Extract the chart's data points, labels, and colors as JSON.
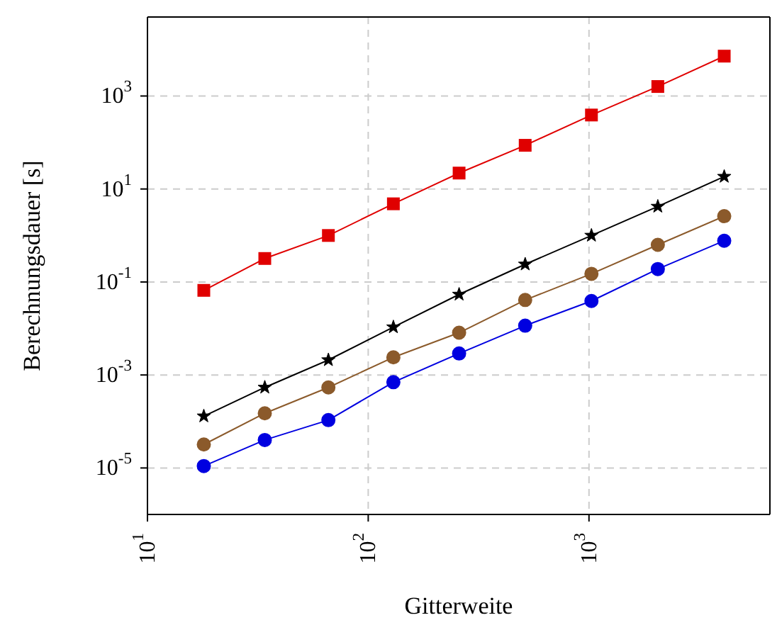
{
  "chart_data": {
    "type": "line",
    "xlabel": "Gitterweite",
    "ylabel": "Berechnungsdauer [s]",
    "log": "xy",
    "grid": true,
    "line_style": "solid",
    "xlim": [
      10,
      6600
    ],
    "ylim": [
      1e-06,
      50000
    ],
    "xticks": [
      {
        "value": 10,
        "label": "10$^{1}$"
      },
      {
        "value": 100,
        "label": "10$^{2}$"
      },
      {
        "value": 1000,
        "label": "10$^{3}$"
      }
    ],
    "yticks": [
      {
        "value": 1e-05,
        "label": "10$^{-5}$"
      },
      {
        "value": 0.001,
        "label": "10$^{-3}$"
      },
      {
        "value": 0.1,
        "label": "10$^{-1}$"
      },
      {
        "value": 10,
        "label": "10$^{1}$"
      },
      {
        "value": 1000,
        "label": "10$^{3}$"
      }
    ],
    "x": [
      18,
      34,
      66,
      130,
      258,
      514,
      1026,
      2050,
      4098
    ],
    "series": [
      {
        "color": "#e00000",
        "marker": "square",
        "values": [
          0.066,
          0.32,
          1.0,
          4.8,
          22,
          87,
          390,
          1600,
          7200
        ]
      },
      {
        "color": "#000000",
        "marker": "star",
        "values": [
          0.00013,
          0.00054,
          0.0021,
          0.0107,
          0.054,
          0.24,
          1.0,
          4.2,
          18.5
        ]
      },
      {
        "color": "#8b5a2b",
        "marker": "circle",
        "values": [
          3.2e-05,
          0.00015,
          0.00054,
          0.0024,
          0.0081,
          0.041,
          0.15,
          0.63,
          2.6
        ]
      },
      {
        "color": "#0000e0",
        "marker": "circle",
        "values": [
          1.1e-05,
          4e-05,
          0.000107,
          0.0007,
          0.0029,
          0.0115,
          0.039,
          0.19,
          0.77
        ]
      }
    ]
  }
}
